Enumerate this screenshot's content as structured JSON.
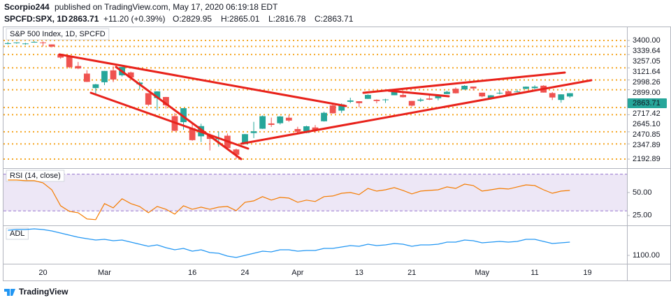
{
  "header": {
    "author": "Scorpio244",
    "published": "published on TradingView.com, May 17, 2020 06:19:18 EDT",
    "symbol": "SPCFD:SPX, 1D",
    "price": "2863.71",
    "change": "+11.20 (+0.39%)",
    "open": "O:2829.95",
    "high": "H:2865.01",
    "low": "L:2816.78",
    "close": "C:2863.71"
  },
  "footer": {
    "brand": "TradingView"
  },
  "chart_data": [
    {
      "type": "candlestick",
      "title": "S&P 500 Index, 1D, SPCFD",
      "up_color": "#26a69a",
      "down_color": "#ef5350",
      "categories": [
        null,
        null,
        null,
        null,
        "20",
        null,
        null,
        null,
        null,
        null,
        null,
        "Mar",
        null,
        null,
        null,
        null,
        null,
        null,
        null,
        null,
        null,
        "16",
        null,
        null,
        null,
        null,
        null,
        "24",
        null,
        null,
        null,
        null,
        null,
        "Apr",
        null,
        null,
        null,
        null,
        null,
        null,
        "13",
        null,
        null,
        null,
        null,
        null,
        "21",
        null,
        null,
        null,
        null,
        null,
        null,
        null,
        "May",
        null,
        null,
        null,
        null,
        null,
        "11",
        null,
        null,
        null,
        null,
        null,
        "19",
        null,
        null,
        null,
        null
      ],
      "open": [
        3365,
        3378,
        3369,
        3380,
        3380,
        3360,
        3258,
        3238,
        3140,
        3063,
        2916,
        2975,
        3096,
        3046,
        3075,
        2954,
        2864,
        2814,
        2825,
        2630,
        2569,
        2508,
        2425,
        2436,
        2394,
        2431,
        2291,
        2345,
        2458,
        2502,
        2556,
        2558,
        2614,
        2499,
        2459,
        2515,
        2578,
        2739,
        2686,
        2776,
        2782,
        2806,
        2797,
        2800,
        2843,
        2846,
        2785,
        2787,
        2810,
        2812,
        2855,
        2909,
        2901,
        2931,
        2869,
        2815,
        2868,
        2884,
        2879,
        2908,
        2915,
        2940,
        2865,
        2795,
        2829.95,
        null,
        null,
        null,
        null,
        null,
        null
      ],
      "high": [
        3385,
        3381,
        3376,
        3393,
        3390,
        3360,
        3259,
        3247,
        3182,
        3098,
        2959,
        3091,
        3137,
        3130,
        3083,
        2985,
        2863,
        2883,
        2826,
        2661,
        2711,
        2563,
        2553,
        2453,
        2473,
        2453,
        2300,
        2449,
        2572,
        2637,
        2615,
        2631,
        2641,
        2522,
        2533,
        2539,
        2676,
        2756,
        2760,
        2818,
        2783,
        2852,
        2801,
        2807,
        2880,
        2868,
        2785,
        2815,
        2844,
        2842,
        2888,
        2922,
        2945,
        2931,
        2869,
        2845,
        2898,
        2891,
        2902,
        2932,
        2944,
        2945,
        2875,
        2852,
        2865.01,
        null,
        null,
        null,
        null,
        null,
        null
      ],
      "low": [
        3360,
        3367,
        3356,
        3378,
        3341,
        3328,
        3214,
        3118,
        3108,
        2977,
        2855,
        2946,
        2976,
        3034,
        2999,
        2901,
        2734,
        2691,
        2707,
        2478,
        2492,
        2380,
        2367,
        2281,
        2319,
        2295,
        2192,
        2345,
        2407,
        2500,
        2521,
        2545,
        2572,
        2447,
        2456,
        2460,
        2575,
        2657,
        2663,
        2762,
        2721,
        2805,
        2761,
        2765,
        2843,
        2820,
        2728,
        2775,
        2794,
        2791,
        2855,
        2860,
        2900,
        2892,
        2822,
        2798,
        2852,
        2847,
        2877,
        2903,
        2904,
        2870,
        2794,
        2767,
        2816.78,
        null,
        null,
        null,
        null,
        null,
        null
      ],
      "close": [
        3373,
        3380,
        3370,
        3386,
        3373,
        3338,
        3226,
        3128,
        3116,
        2979,
        2954,
        3090,
        3003,
        3130,
        3024,
        2972,
        2747,
        2882,
        2741,
        2481,
        2711,
        2386,
        2529,
        2398,
        2409,
        2305,
        2237,
        2447,
        2476,
        2630,
        2541,
        2627,
        2585,
        2471,
        2527,
        2489,
        2664,
        2659,
        2750,
        2790,
        2762,
        2846,
        2784,
        2800,
        2875,
        2823,
        2737,
        2799,
        2798,
        2837,
        2878,
        2863,
        2939,
        2912,
        2831,
        2842,
        2868,
        2848,
        2881,
        2930,
        2930,
        2870,
        2820,
        2852,
        2863.71,
        null,
        null,
        null,
        null,
        null,
        null
      ],
      "ylim": [
        2108,
        3528
      ],
      "yticks": [
        {
          "value": 3400,
          "label": "3400.00"
        },
        3339.64,
        3257.05,
        3121.64,
        2998.26,
        {
          "value": 2899,
          "label": "2899.00"
        },
        2717.42,
        {
          "value": 2645.1,
          "label": "2645.10"
        },
        2470.85,
        2347.89,
        2192.89
      ],
      "grid": "dotted",
      "grid_color": "#f5a623",
      "last_value": 2863.71,
      "last_color": "#26a69a"
    },
    {
      "type": "line",
      "title": "RSI (14, close)",
      "color": "#f57c00",
      "band": [
        30,
        70
      ],
      "band_color": "#ede7f6",
      "values": [
        63.6,
        63.6,
        62.9,
        62.9,
        60.6,
        53,
        35.6,
        29.5,
        28,
        21.2,
        20.5,
        37.9,
        33.3,
        43.2,
        37.9,
        34.8,
        28,
        34.8,
        31.8,
        26.5,
        35.6,
        31.8,
        34.1,
        31.8,
        34.1,
        34.8,
        30.3,
        39.4,
        40.9,
        45.5,
        41.7,
        44.7,
        43.9,
        39.4,
        41.7,
        40.2,
        45.5,
        46.2,
        49.2,
        50,
        47.7,
        54.5,
        51.5,
        53,
        55.3,
        52.3,
        48.5,
        51.5,
        52.3,
        53,
        56.1,
        54.5,
        59.1,
        57.6,
        51.5,
        53,
        54.5,
        53.8,
        56.1,
        58.3,
        57.6,
        53,
        49.2,
        51.5,
        52.3,
        null,
        null,
        null,
        null,
        null,
        null
      ],
      "ylim": [
        15,
        75
      ],
      "yticks": [
        {
          "value": 50,
          "label": "50.00"
        },
        {
          "value": 25,
          "label": "25.00"
        }
      ]
    },
    {
      "type": "line",
      "title": "ADL",
      "color": "#2196f3",
      "values": [
        1896,
        1918,
        1918,
        1940,
        1918,
        1874,
        1807,
        1741,
        1675,
        1630,
        1586,
        1608,
        1564,
        1586,
        1520,
        1454,
        1387,
        1432,
        1343,
        1277,
        1321,
        1233,
        1277,
        1188,
        1166,
        1078,
        1034,
        1100,
        1166,
        1233,
        1210,
        1277,
        1277,
        1233,
        1255,
        1255,
        1321,
        1321,
        1365,
        1409,
        1387,
        1454,
        1409,
        1432,
        1476,
        1454,
        1387,
        1432,
        1432,
        1454,
        1520,
        1520,
        1586,
        1564,
        1498,
        1520,
        1542,
        1520,
        1542,
        1608,
        1608,
        1542,
        1476,
        1498,
        1520,
        null,
        null,
        null,
        null,
        null,
        null
      ],
      "ylim": [
        835,
        1985
      ],
      "yticks": [
        {
          "value": 1100,
          "label": "1100.00"
        }
      ]
    }
  ]
}
